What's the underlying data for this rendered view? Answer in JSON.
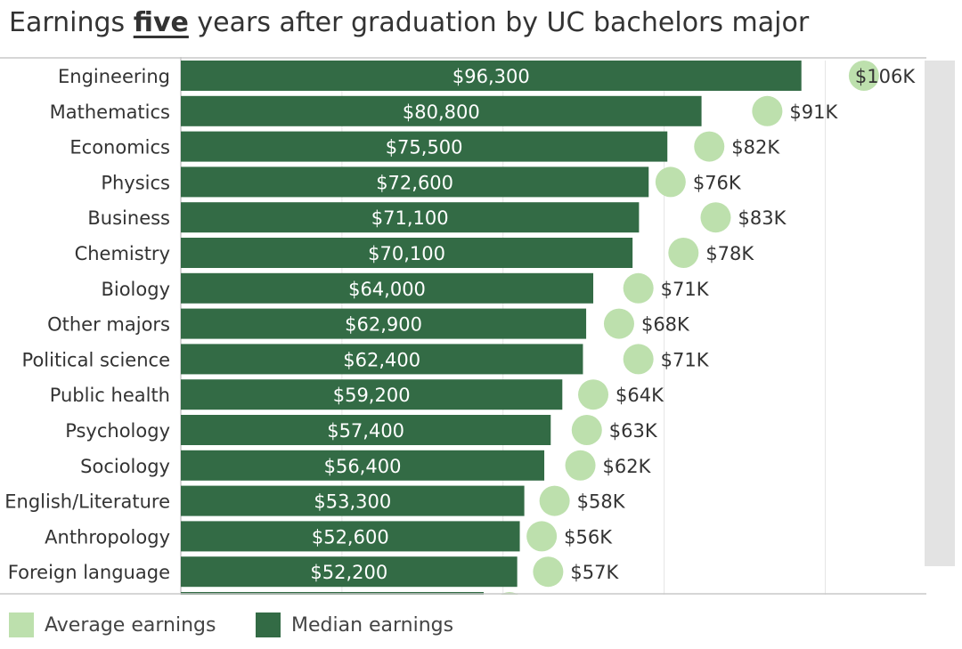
{
  "title": {
    "before": "Earnings ",
    "emphasis": "five",
    "after": " years after graduation by UC bachelors major"
  },
  "colors": {
    "median": "#336b45",
    "average": "#bde0ad",
    "axis": "#c8c8c8",
    "grid": "#e6e6e6"
  },
  "legend": [
    {
      "label": "Average earnings",
      "color": "#bde0ad"
    },
    {
      "label": "Median earnings",
      "color": "#336b45"
    }
  ],
  "chart_data": {
    "type": "bar",
    "orientation": "horizontal",
    "xlim": [
      0,
      115000
    ],
    "grid": true,
    "legend_position": "bottom-left",
    "categories": [
      "Engineering",
      "Mathematics",
      "Economics",
      "Physics",
      "Business",
      "Chemistry",
      "Biology",
      "Other majors",
      "Political science",
      "Public health",
      "Psychology",
      "Sociology",
      "English/Literature",
      "Anthropology",
      "Foreign language"
    ],
    "series": [
      {
        "name": "Median earnings",
        "mark": "bar",
        "values": [
          96300,
          80800,
          75500,
          72600,
          71100,
          70100,
          64000,
          62900,
          62400,
          59200,
          57400,
          56400,
          53300,
          52600,
          52200
        ],
        "labels": [
          "$96,300",
          "$80,800",
          "$75,500",
          "$72,600",
          "$71,100",
          "$70,100",
          "$64,000",
          "$62,900",
          "$62,400",
          "$59,200",
          "$57,400",
          "$56,400",
          "$53,300",
          "$52,600",
          "$52,200"
        ]
      },
      {
        "name": "Average earnings",
        "mark": "circle",
        "values": [
          106000,
          91000,
          82000,
          76000,
          83000,
          78000,
          71000,
          68000,
          71000,
          64000,
          63000,
          62000,
          58000,
          56000,
          57000
        ],
        "labels": [
          "$106K",
          "$91K",
          "$82K",
          "$76K",
          "$83K",
          "$78K",
          "$71K",
          "$68K",
          "$71K",
          "$64K",
          "$63K",
          "$62K",
          "$58K",
          "$56K",
          "$57K"
        ]
      }
    ]
  }
}
